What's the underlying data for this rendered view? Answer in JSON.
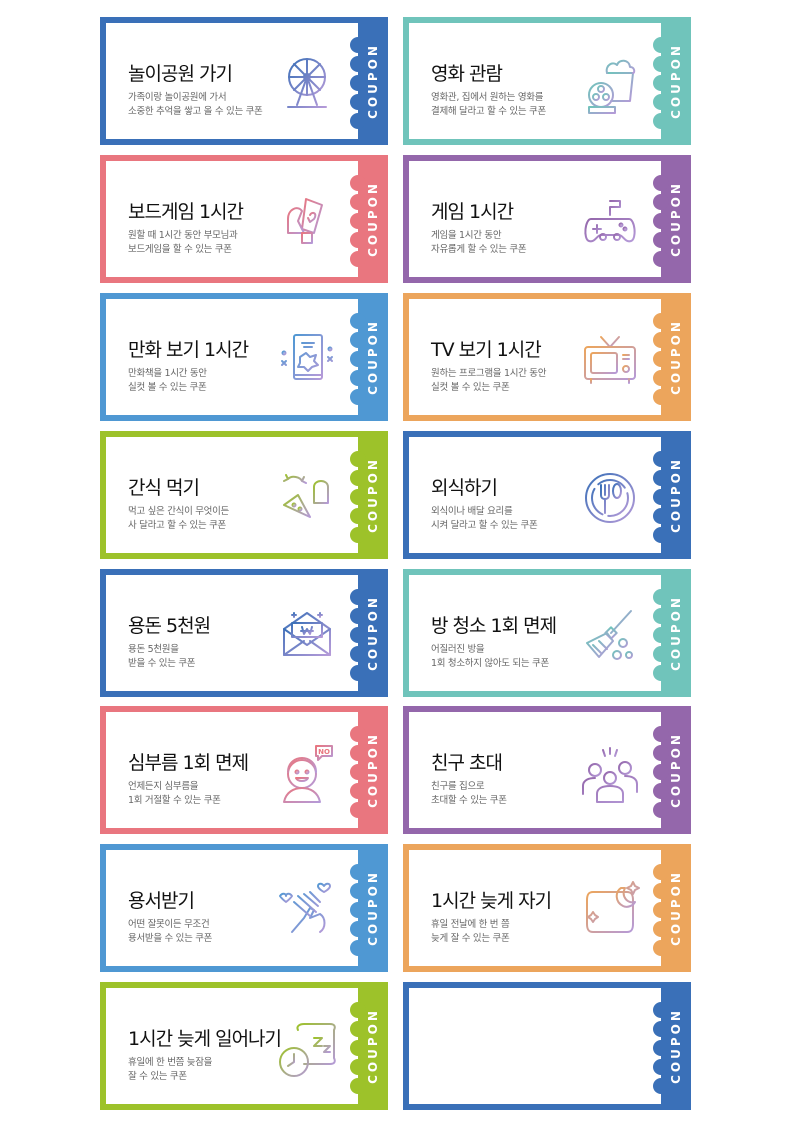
{
  "stub_label": "COUPON",
  "colors": {
    "blue": "#3a70b8",
    "pink": "#e9767f",
    "lightblue": "#4f98d3",
    "lime": "#9dc22a",
    "teal": "#70c4bb",
    "purple": "#9467ab",
    "orange": "#eca55c"
  },
  "coupons": [
    {
      "title": "놀이공원 가기",
      "desc": "가족이랑 놀이공원에 가서\n소중한 추억을 쌓고 올 수 있는 쿠폰",
      "color": "blue",
      "icon": "ferris-wheel-icon"
    },
    {
      "title": "영화 관람",
      "desc": "영화관, 집에서 원하는 영화를\n결제해 달라고 할 수 있는 쿠폰",
      "color": "teal",
      "icon": "popcorn-film-icon"
    },
    {
      "title": "보드게임 1시간",
      "desc": "원할 때 1시간 동안 부모님과\n보드게임을 할 수 있는 쿠폰",
      "color": "pink",
      "icon": "board-game-icon"
    },
    {
      "title": "게임 1시간",
      "desc": "게임을 1시간 동안\n자유롭게 할 수 있는 쿠폰",
      "color": "purple",
      "icon": "gamepad-icon"
    },
    {
      "title": "만화 보기 1시간",
      "desc": "만화책을 1시간 동안\n실컷 볼 수 있는 쿠폰",
      "color": "lightblue",
      "icon": "comic-book-icon"
    },
    {
      "title": "TV 보기 1시간",
      "desc": "원하는 프로그램을 1시간 동안\n실컷 볼 수 있는 쿠폰",
      "color": "orange",
      "icon": "tv-icon"
    },
    {
      "title": "간식 먹기",
      "desc": "먹고 싶은 간식이 무엇이든\n사 달라고 할 수 있는 쿠폰",
      "color": "lime",
      "icon": "snack-icon"
    },
    {
      "title": "외식하기",
      "desc": "외식이나 배달 요리를\n시켜 달라고 할 수 있는 쿠폰",
      "color": "blue",
      "icon": "dining-icon"
    },
    {
      "title": "용돈 5천원",
      "desc": "용돈 5천원을\n받을 수 있는 쿠폰",
      "color": "blue",
      "icon": "money-envelope-icon"
    },
    {
      "title": "방 청소 1회 면제",
      "desc": "어질러진 방을\n1회 청소하지 않아도 되는 쿠폰",
      "color": "teal",
      "icon": "broom-icon"
    },
    {
      "title": "심부름 1회 면제",
      "desc": "언제든지 심부름을\n1회 거절할 수 있는 쿠폰",
      "color": "pink",
      "icon": "kid-saying-no-icon",
      "badge": "NO"
    },
    {
      "title": "친구 초대",
      "desc": "친구를 집으로\n초대할 수 있는 쿠폰",
      "color": "purple",
      "icon": "friends-icon"
    },
    {
      "title": "용서받기",
      "desc": "어떤 잘못이든 무조건\n용서받을 수 있는 쿠폰",
      "color": "lightblue",
      "icon": "holding-hands-icon"
    },
    {
      "title": "1시간 늦게 자기",
      "desc": "휴일 전날에 한 번 쯤\n늦게 잘 수 있는 쿠폰",
      "color": "orange",
      "icon": "pillow-moon-icon"
    },
    {
      "title": "1시간 늦게 일어나기",
      "desc": "휴일에 한 번쯤 늦잠을\n잘 수 있는 쿠폰",
      "color": "lime",
      "icon": "pillow-clock-icon"
    },
    {
      "title": "",
      "desc": "",
      "color": "blue",
      "icon": ""
    }
  ]
}
